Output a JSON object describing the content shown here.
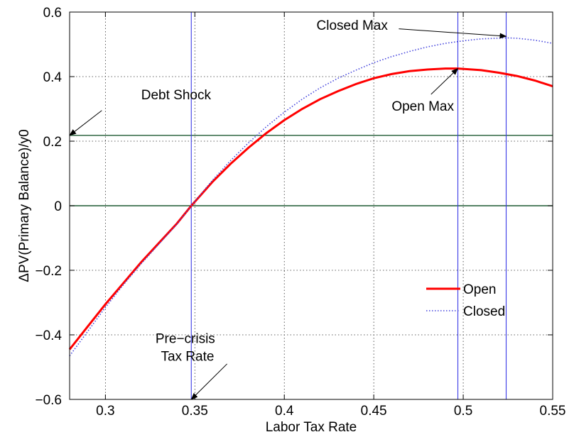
{
  "chart_data": {
    "type": "line",
    "xlabel": "Labor Tax Rate",
    "ylabel": "ΔPV(Primary Balance)/y0",
    "xlim": [
      0.28,
      0.55
    ],
    "ylim": [
      -0.6,
      0.6
    ],
    "xticks": [
      0.3,
      0.35,
      0.4,
      0.45,
      0.5,
      0.55
    ],
    "yticks": [
      -0.6,
      -0.4,
      -0.2,
      0,
      0.2,
      0.4,
      0.6
    ],
    "xtick_labels": [
      "0.3",
      "0.35",
      "0.4",
      "0.45",
      "0.5",
      "0.55"
    ],
    "ytick_labels": [
      "−0.6",
      "−0.4",
      "−0.2",
      "0",
      "0.2",
      "0.4",
      "0.6"
    ],
    "grid": true,
    "legend_position": "lower-right",
    "series": [
      {
        "name": "Open",
        "color": "#ff0000",
        "style": "solid",
        "x": [
          0.28,
          0.29,
          0.3,
          0.31,
          0.32,
          0.33,
          0.34,
          0.348,
          0.36,
          0.37,
          0.38,
          0.39,
          0.4,
          0.41,
          0.42,
          0.43,
          0.44,
          0.45,
          0.46,
          0.47,
          0.48,
          0.49,
          0.497,
          0.51,
          0.52,
          0.53,
          0.54,
          0.55
        ],
        "y": [
          -0.445,
          -0.375,
          -0.305,
          -0.24,
          -0.175,
          -0.115,
          -0.055,
          0.0,
          0.075,
          0.13,
          0.18,
          0.225,
          0.265,
          0.3,
          0.33,
          0.355,
          0.377,
          0.395,
          0.408,
          0.417,
          0.422,
          0.425,
          0.425,
          0.42,
          0.412,
          0.402,
          0.388,
          0.37
        ]
      },
      {
        "name": "Closed",
        "color": "#4444dd",
        "style": "dotted",
        "x": [
          0.28,
          0.29,
          0.3,
          0.31,
          0.32,
          0.33,
          0.34,
          0.348,
          0.36,
          0.37,
          0.38,
          0.39,
          0.4,
          0.41,
          0.42,
          0.43,
          0.44,
          0.45,
          0.46,
          0.47,
          0.48,
          0.49,
          0.5,
          0.51,
          0.524,
          0.53,
          0.54,
          0.55
        ],
        "y": [
          -0.465,
          -0.39,
          -0.315,
          -0.245,
          -0.18,
          -0.118,
          -0.057,
          0.0,
          0.08,
          0.14,
          0.195,
          0.245,
          0.29,
          0.33,
          0.365,
          0.395,
          0.42,
          0.443,
          0.462,
          0.478,
          0.492,
          0.503,
          0.511,
          0.517,
          0.52,
          0.519,
          0.513,
          0.503
        ]
      }
    ],
    "horizontal_lines": [
      {
        "y": 0,
        "color": "#1e5a32"
      },
      {
        "y": 0.218,
        "color": "#1e5a32"
      }
    ],
    "vertical_lines": [
      {
        "x": 0.348,
        "color": "#3a3ae6"
      },
      {
        "x": 0.497,
        "color": "#3a3ae6"
      },
      {
        "x": 0.524,
        "color": "#3a3ae6"
      }
    ],
    "annotations": [
      {
        "text": "Debt Shock",
        "text_x": 0.32,
        "text_y": 0.33,
        "arrow_from_x": 0.298,
        "arrow_from_y": 0.295,
        "arrow_to_x": 0.28,
        "arrow_to_y": 0.218
      },
      {
        "text": "Closed Max",
        "text_x": 0.418,
        "text_y": 0.545,
        "arrow_from_x": 0.464,
        "arrow_from_y": 0.548,
        "arrow_to_x": 0.524,
        "arrow_to_y": 0.525
      },
      {
        "text": "Open Max",
        "text_x": 0.46,
        "text_y": 0.295,
        "arrow_from_x": 0.482,
        "arrow_from_y": 0.345,
        "arrow_to_x": 0.497,
        "arrow_to_y": 0.425
      },
      {
        "text": "Pre−crisis",
        "text_x": 0.328,
        "text_y": -0.425,
        "arrow_from_x": null,
        "arrow_from_y": null,
        "arrow_to_x": null,
        "arrow_to_y": null
      },
      {
        "text": "Tax Rate",
        "text_x": 0.331,
        "text_y": -0.48,
        "arrow_from_x": 0.368,
        "arrow_from_y": -0.49,
        "arrow_to_x": 0.348,
        "arrow_to_y": -0.6
      }
    ]
  }
}
